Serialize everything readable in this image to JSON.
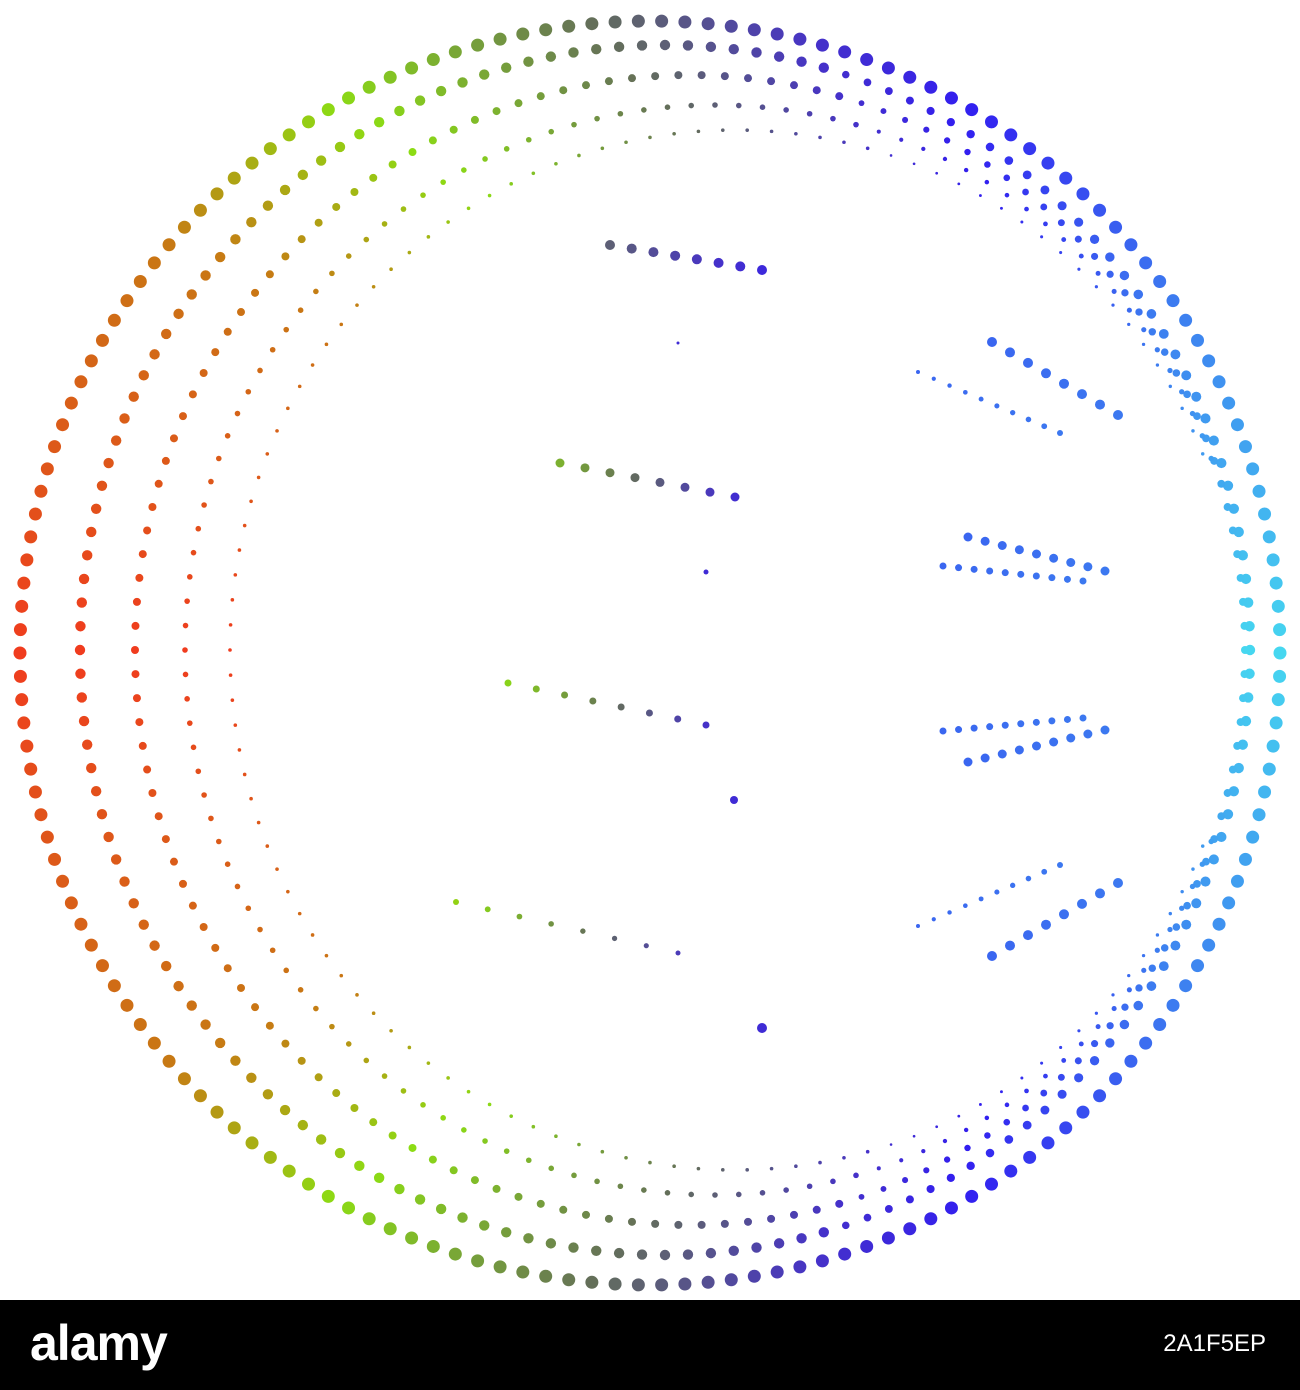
{
  "watermark": {
    "brand": "alamy",
    "image_id": "2A1F5EP"
  }
}
